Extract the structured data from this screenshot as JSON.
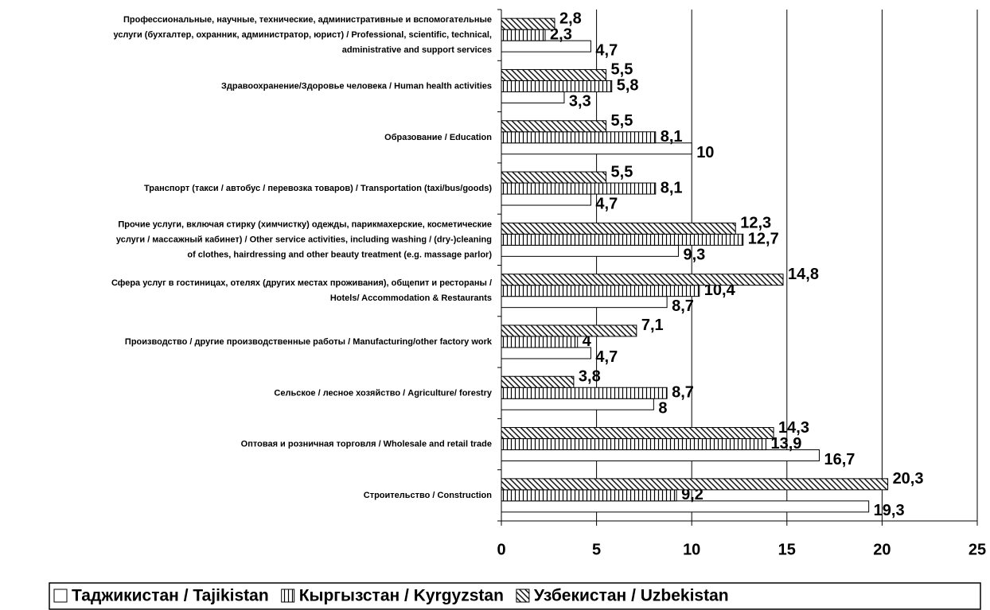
{
  "chart_data": {
    "type": "bar",
    "orientation": "horizontal",
    "categories": [
      [
        "Профессиональные, научные, технические, административные и вспомогательные",
        "услуги (бухгалтер, охранник, администратор, юрист) / Professional, scientific, technical,",
        "administrative and support services"
      ],
      [
        "Здравоохранение/Здоровье человека / Human health activities"
      ],
      [
        "Образование / Education"
      ],
      [
        "Транспорт (такси / автобус / перевозка товаров) / Transportation (taxi/bus/goods)"
      ],
      [
        "Прочие услуги, включая стирку (химчистку) одежды, парикмахерские, косметические",
        "услуги / массажный кабинет) / Other service activities, including washing / (dry-)cleaning",
        "of clothes, hairdressing and other beauty treatment (e.g. massage parlor)"
      ],
      [
        "Сфера услуг в гостиницах, отелях (других местах проживания), общепит и рестораны /",
        "Hotels/ Accommodation & Restaurants"
      ],
      [
        "Производство / другие производственные работы / Manufacturing/other factory work"
      ],
      [
        "Сельское / лесное хозяйство / Agriculture/ forestry"
      ],
      [
        "Оптовая и розничная торговля / Wholesale and retail trade"
      ],
      [
        "Строительство / Construction"
      ]
    ],
    "series": [
      {
        "name": "Таджикистан / Tajikistan",
        "color": "#ffffff",
        "pattern": "none",
        "values": [
          4.7,
          3.3,
          10,
          4.7,
          9.3,
          8.7,
          4.7,
          8,
          16.7,
          19.3
        ],
        "value_labels": [
          "4,7",
          "3,3",
          "10",
          "4,7",
          "9,3",
          "8,7",
          "4,7",
          "8",
          "16,7",
          "19,3"
        ]
      },
      {
        "name": "Кыргызстан / Kyrgyzstan",
        "color": "#ffffff",
        "pattern": "vertical",
        "values": [
          2.3,
          5.8,
          8.1,
          8.1,
          12.7,
          10.4,
          4,
          8.7,
          13.9,
          9.2
        ],
        "value_labels": [
          "2,3",
          "5,8",
          "8,1",
          "8,1",
          "12,7",
          "10,4",
          "4",
          "8,7",
          "13,9",
          "9,2"
        ]
      },
      {
        "name": "Узбекистан / Uzbekistan",
        "color": "#ffffff",
        "pattern": "diagonal",
        "values": [
          2.8,
          5.5,
          5.5,
          5.5,
          12.3,
          14.8,
          7.1,
          3.8,
          14.3,
          20.3
        ],
        "value_labels": [
          "2,8",
          "5,5",
          "5,5",
          "5,5",
          "12,3",
          "14,8",
          "7,1",
          "3,8",
          "14,3",
          "20,3"
        ]
      }
    ],
    "xlim": [
      0,
      25
    ],
    "xticks": [
      0,
      5,
      10,
      15,
      20,
      25
    ],
    "grid": true,
    "legend": "bottom"
  }
}
